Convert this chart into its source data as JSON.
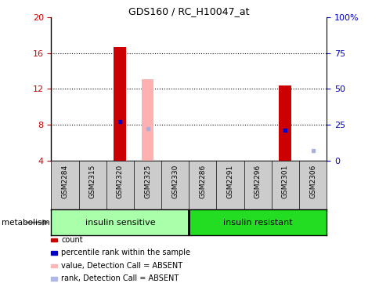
{
  "title": "GDS160 / RC_H10047_at",
  "samples": [
    "GSM2284",
    "GSM2315",
    "GSM2320",
    "GSM2325",
    "GSM2330",
    "GSM2286",
    "GSM2291",
    "GSM2296",
    "GSM2301",
    "GSM2306"
  ],
  "ylim_left": [
    4,
    20
  ],
  "ylim_right": [
    0,
    100
  ],
  "yticks_left": [
    4,
    8,
    12,
    16,
    20
  ],
  "yticks_right": [
    0,
    25,
    50,
    75,
    100
  ],
  "yticklabels_right": [
    "0",
    "25",
    "50",
    "75",
    "100%"
  ],
  "bar_bottom": 4,
  "red_bars": {
    "GSM2320": 16.7,
    "GSM2301": 12.4
  },
  "pink_bars": {
    "GSM2325": 13.1
  },
  "blue_dots": {
    "GSM2320": 8.4,
    "GSM2301": 7.4
  },
  "light_blue_dots": {
    "GSM2325": 7.6,
    "GSM2306": 5.1
  },
  "group1_label": "insulin sensitive",
  "group2_label": "insulin resistant",
  "group1_indices": [
    0,
    1,
    2,
    3,
    4
  ],
  "group2_indices": [
    5,
    6,
    7,
    8,
    9
  ],
  "group1_color": "#aaffaa",
  "group2_color": "#22dd22",
  "metabolism_label": "metabolism",
  "legend_items": [
    {
      "label": "count",
      "color": "#cc0000"
    },
    {
      "label": "percentile rank within the sample",
      "color": "#0000cc"
    },
    {
      "label": "value, Detection Call = ABSENT",
      "color": "#ffb6b6"
    },
    {
      "label": "rank, Detection Call = ABSENT",
      "color": "#b0b8e8"
    }
  ],
  "red_color": "#cc0000",
  "pink_color": "#ffb0b0",
  "blue_color": "#0000cc",
  "light_blue_color": "#aab0dd",
  "bar_width": 0.45,
  "grid_color": "#000000",
  "tick_label_color_left": "#cc0000",
  "tick_label_color_right": "#0000cc",
  "background_color": "#ffffff",
  "plot_bg_color": "#ffffff",
  "sample_area_color": "#cccccc"
}
